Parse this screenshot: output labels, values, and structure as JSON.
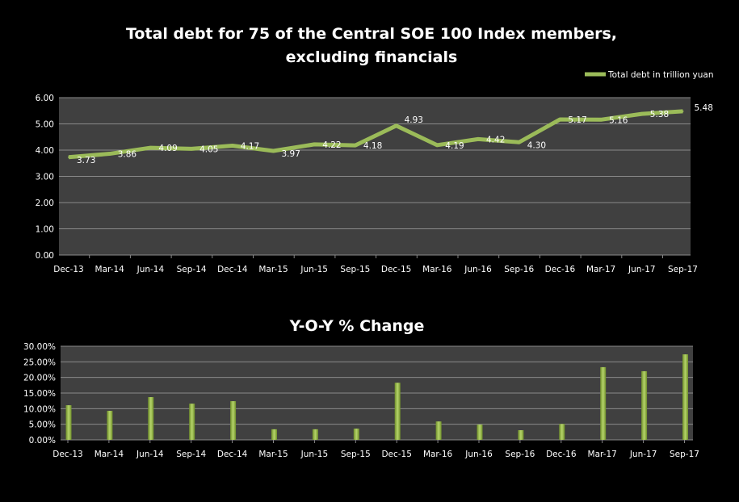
{
  "chart_data": [
    {
      "type": "line",
      "title_line1": "Total debt for 75 of the Central SOE 100 Index members,",
      "title_line2": "excluding financials",
      "legend": "Total debt in trillion yuan",
      "legend_position": "top-right",
      "categories": [
        "Dec-13",
        "Mar-14",
        "Jun-14",
        "Sep-14",
        "Dec-14",
        "Mar-15",
        "Jun-15",
        "Sep-15",
        "Dec-15",
        "Mar-16",
        "Jun-16",
        "Sep-16",
        "Dec-16",
        "Mar-17",
        "Jun-17",
        "Sep-17"
      ],
      "values": [
        3.73,
        3.86,
        4.09,
        4.05,
        4.17,
        3.97,
        4.22,
        4.18,
        4.93,
        4.19,
        4.42,
        4.3,
        5.17,
        5.16,
        5.38,
        5.48
      ],
      "labels": [
        "3.73",
        "3.86",
        "4.09",
        "4.05",
        "4.17",
        "3.97",
        "4.22",
        "4.18",
        "4.93",
        "4.19",
        "4.42",
        "4.30",
        "5.17",
        "5.16",
        "5.38",
        "5.48"
      ],
      "yticks": [
        "0.00",
        "1.00",
        "2.00",
        "3.00",
        "4.00",
        "5.00",
        "6.00"
      ],
      "ylim": [
        0,
        6
      ],
      "grid": true,
      "color": "#9bbb59"
    },
    {
      "type": "bar",
      "title": "Y-O-Y % Change",
      "categories": [
        "Dec-13",
        "Mar-14",
        "Jun-14",
        "Sep-14",
        "Dec-14",
        "Mar-15",
        "Jun-15",
        "Sep-15",
        "Dec-15",
        "Mar-16",
        "Jun-16",
        "Sep-16",
        "Dec-16",
        "Mar-17",
        "Jun-17",
        "Sep-17"
      ],
      "values": [
        11.1,
        9.3,
        13.7,
        11.6,
        12.4,
        3.4,
        3.4,
        3.6,
        18.3,
        5.9,
        4.9,
        3.1,
        5.1,
        23.3,
        22.0,
        27.4
      ],
      "yticks": [
        "0.00%",
        "5.00%",
        "10.00%",
        "15.00%",
        "20.00%",
        "25.00%",
        "30.00%"
      ],
      "ylim": [
        0,
        30
      ],
      "grid": true,
      "color": "#9bbb59"
    }
  ]
}
